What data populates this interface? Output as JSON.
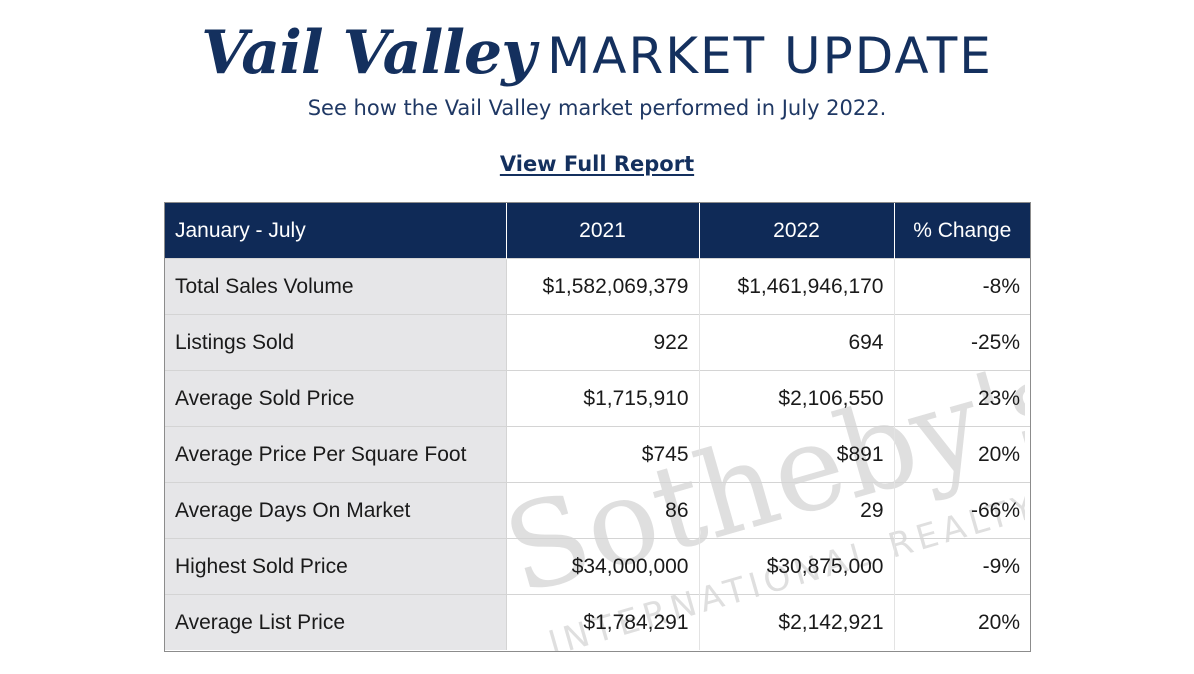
{
  "header": {
    "brand": "Vail Valley",
    "headline": "MARKET UPDATE",
    "subtitle": "See how the Vail Valley market performed in July 2022.",
    "report_link": "View Full Report"
  },
  "table": {
    "columns": [
      "January - July",
      "2021",
      "2022",
      "% Change"
    ],
    "rows": [
      {
        "label": "Total Sales Volume",
        "y2021": "$1,582,069,379",
        "y2022": "$1,461,946,170",
        "change": "-8%"
      },
      {
        "label": "Listings Sold",
        "y2021": "922",
        "y2022": "694",
        "change": "-25%"
      },
      {
        "label": "Average Sold Price",
        "y2021": "$1,715,910",
        "y2022": "$2,106,550",
        "change": "23%"
      },
      {
        "label": "Average Price Per Square Foot",
        "y2021": "$745",
        "y2022": "$891",
        "change": "20%"
      },
      {
        "label": "Average Days On Market",
        "y2021": "86",
        "y2022": "29",
        "change": "-66%"
      },
      {
        "label": "Highest Sold Price",
        "y2021": "$34,000,000",
        "y2022": "$30,875,000",
        "change": "-9%"
      },
      {
        "label": "Average List Price",
        "y2021": "$1,784,291",
        "y2022": "$2,142,921",
        "change": "20%"
      }
    ]
  },
  "watermark": {
    "brand": "Sotheby's",
    "tagline": "INTERNATIONAL REALTY"
  },
  "colors": {
    "navy": "#0f2a57",
    "label_bg": "#e6e6e8",
    "watermark": "#dcdcdc"
  }
}
